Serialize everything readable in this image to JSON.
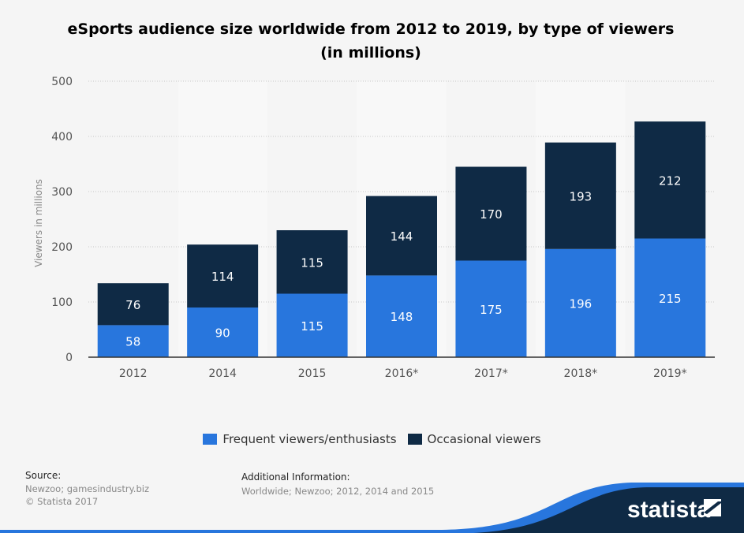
{
  "chart_data": {
    "type": "bar",
    "stacked": true,
    "title": "eSports audience size worldwide from 2012 to 2019, by type of viewers (in millions)",
    "ylabel": "Viewers in millions",
    "xlabel": "",
    "ylim": [
      0,
      500
    ],
    "yticks": [
      0,
      100,
      200,
      300,
      400,
      500
    ],
    "grid": true,
    "legend_position": "bottom",
    "categories": [
      "2012",
      "2014",
      "2015",
      "2016*",
      "2017*",
      "2018*",
      "2019*"
    ],
    "series": [
      {
        "name": "Frequent viewers/enthusiasts",
        "color": "#2876dd",
        "values": [
          58,
          90,
          115,
          148,
          175,
          196,
          215
        ]
      },
      {
        "name": "Occasional viewers",
        "color": "#0f2a45",
        "values": [
          76,
          114,
          115,
          144,
          170,
          193,
          212
        ]
      }
    ]
  },
  "source": {
    "label": "Source:",
    "text": "Newzoo; gamesindustry.biz",
    "copyright": "© Statista 2017"
  },
  "additional": {
    "label": "Additional Information:",
    "text": "Worldwide; Newzoo; 2012, 2014 and 2015"
  },
  "brand": {
    "logo": "statista"
  }
}
